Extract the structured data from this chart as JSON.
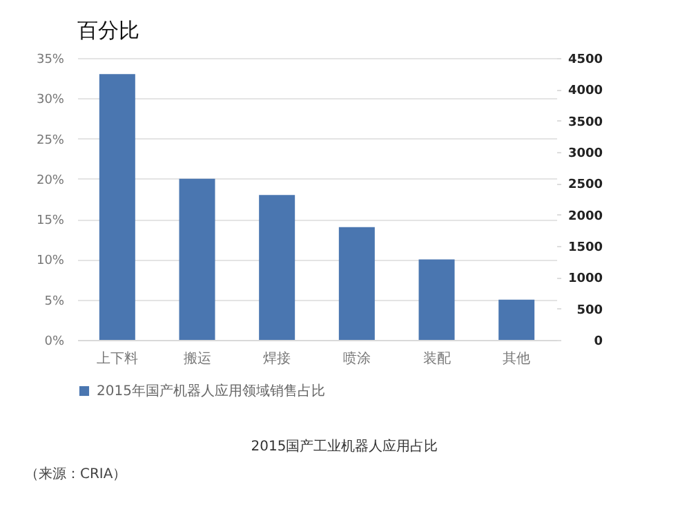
{
  "chart_data": {
    "type": "bar",
    "title": "百分比",
    "categories": [
      "上下料",
      "搬运",
      "焊接",
      "喷涂",
      "装配",
      "其他"
    ],
    "series": [
      {
        "name": "2015年国产机器人应用领域销售占比",
        "color": "#4a76b0",
        "values": [
          33,
          20,
          18,
          14,
          10,
          5
        ]
      }
    ],
    "ylim": [
      0,
      35
    ],
    "yticks": [
      {
        "value": 0,
        "label": "0%"
      },
      {
        "value": 5,
        "label": "5%"
      },
      {
        "value": 10,
        "label": "10%"
      },
      {
        "value": 15,
        "label": "15%"
      },
      {
        "value": 20,
        "label": "20%"
      },
      {
        "value": 25,
        "label": "25%"
      },
      {
        "value": 30,
        "label": "30%"
      },
      {
        "value": 35,
        "label": "35%"
      }
    ],
    "y2lim": [
      0,
      4500
    ],
    "y2ticks": [
      0,
      500,
      1000,
      1500,
      2000,
      2500,
      3000,
      3500,
      4000,
      4500
    ],
    "grid": "y",
    "legend": "bottom",
    "annotations": [
      "2015国产工业机器人应用占比",
      "（来源：CRIA）"
    ]
  }
}
